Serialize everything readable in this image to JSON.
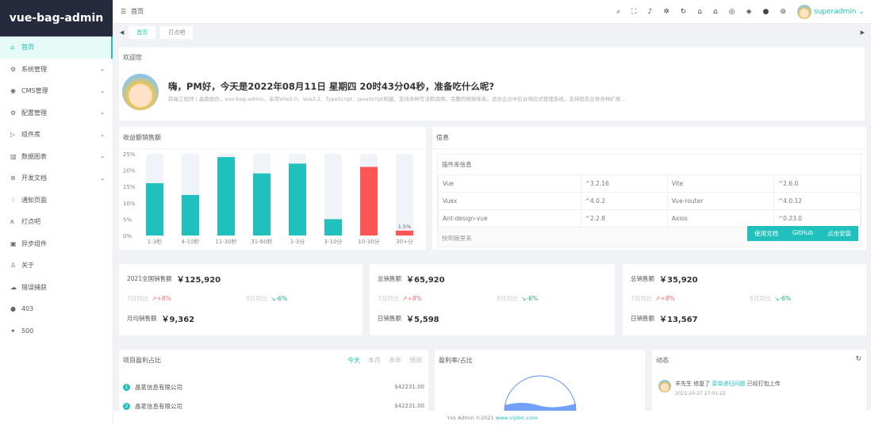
{
  "app": {
    "logo": "vue-bag-admin"
  },
  "sidebar": {
    "items": [
      {
        "label": "首页",
        "icon": "⌂",
        "chev": false
      },
      {
        "label": "系统管理",
        "icon": "⚙",
        "chev": true
      },
      {
        "label": "CMS管理",
        "icon": "◉",
        "chev": true
      },
      {
        "label": "配置管理",
        "icon": "⚙",
        "chev": true
      },
      {
        "label": "组件库",
        "icon": "▷",
        "chev": true
      },
      {
        "label": "数据图表",
        "icon": "▥",
        "chev": true
      },
      {
        "label": "开发文档",
        "icon": "⊛",
        "chev": true
      },
      {
        "label": "通知页面",
        "icon": "♢",
        "chev": false
      },
      {
        "label": "打点吧",
        "icon": "ጰ",
        "chev": false
      },
      {
        "label": "异步组件",
        "icon": "▣",
        "chev": false
      },
      {
        "label": "关于",
        "icon": "♙",
        "chev": false
      },
      {
        "label": "错误捕获",
        "icon": "☁",
        "chev": false
      },
      {
        "label": "403",
        "icon": "●",
        "chev": false
      },
      {
        "label": "500",
        "icon": "✦",
        "chev": false
      }
    ]
  },
  "header": {
    "menu_icon": "☰",
    "breadcrumb": "首页",
    "tools": [
      "⌕",
      "⛶",
      "♪",
      "✲",
      "↻",
      "⌂",
      "⌂",
      "◎",
      "◈",
      "●",
      "⊚"
    ],
    "username": "superadmin"
  },
  "tabs": [
    {
      "label": "首页"
    },
    {
      "label": "打点吧"
    }
  ],
  "welcome": {
    "title": "欢迎您",
    "greeting": "嗨，PM好，今天是2022年08月11日 星期四 20时43分04秒，准备吃什么呢?",
    "desc": "前端工程师 | 晶蓉股份，vue-bag-admin，采用Vite2.0、Vue3.2、TypeScript、JavaScript构建，支持多种写法和调用，完整的框架体系，适合企业中后台响应式管理系统，支持现有业务各种扩展..."
  },
  "chart_data": {
    "type": "bar",
    "title": "收益额销售额",
    "categories": [
      "1-3秒",
      "4-10秒",
      "11-30秒",
      "31-60秒",
      "1-3分",
      "3-10分",
      "10-30分",
      "30+分"
    ],
    "values": [
      16,
      12.4,
      24,
      19,
      22,
      5,
      21,
      1.5
    ],
    "ylim": [
      0,
      25
    ],
    "yticks": [
      "0%",
      "5%",
      "10%",
      "15%",
      "20%",
      "25%"
    ],
    "data_labels": {
      "7": "1.5%"
    },
    "colors": [
      "#20c1bd",
      "#20c1bd",
      "#20c1bd",
      "#20c1bd",
      "#20c1bd",
      "#20c1bd",
      "#ff5555",
      "#ff5555"
    ],
    "background_bar": "#f0f3f8"
  },
  "info": {
    "title": "信息",
    "subtitle": "插件库信息",
    "rows": [
      [
        "Vue",
        "^3.2.16",
        "Vite",
        "^2.6.0"
      ],
      [
        "Vuex",
        "^4.0.2",
        "Vue-router",
        "^4.0.12"
      ],
      [
        "Ant-design-vue",
        "^2.2.8",
        "Axios",
        "^0.23.0"
      ]
    ],
    "footer": "快到碗里来",
    "buttons": [
      "使用文档",
      "GitHub",
      "点击安装"
    ]
  },
  "stats": [
    {
      "label": "2021全国销售额",
      "value": "￥125,920",
      "m1": "7月同比",
      "m1v": "+8%",
      "m2": "8月同比",
      "m2v": "-6%",
      "b": "月均销售额",
      "bv": "￥9,362"
    },
    {
      "label": "总销售额",
      "value": "￥65,920",
      "m1": "7月同比",
      "m1v": "+8%",
      "m2": "8月同比",
      "m2v": "-6%",
      "b": "日销售额",
      "bv": "￥5,598"
    },
    {
      "label": "总销售额",
      "value": "￥35,920",
      "m1": "7月同比",
      "m1v": "+8%",
      "m2": "8月同比",
      "m2v": "-6%",
      "b": "日销售额",
      "bv": "￥13,567"
    }
  ],
  "projects": {
    "title": "项目盈利占比",
    "filters": [
      "今天",
      "本月",
      "本年",
      "预测"
    ],
    "rows": [
      {
        "n": "1",
        "name": "晶茗信息有限公司",
        "amt": "$42231.00"
      },
      {
        "n": "2",
        "name": "晶茗信息有限公司",
        "amt": "$42231.00"
      }
    ]
  },
  "profit": {
    "title": "盈利率/占比"
  },
  "activity": {
    "title": "动态",
    "items": [
      {
        "user": "羊先生",
        "action": "修复了",
        "link": "菜单递归问题",
        "rest": "已经打包上传",
        "time": "2021-20-27 27:01:22"
      }
    ]
  },
  "footer": {
    "text": "Yxs Admin ©2021",
    "link": "www.vipbic.com"
  }
}
